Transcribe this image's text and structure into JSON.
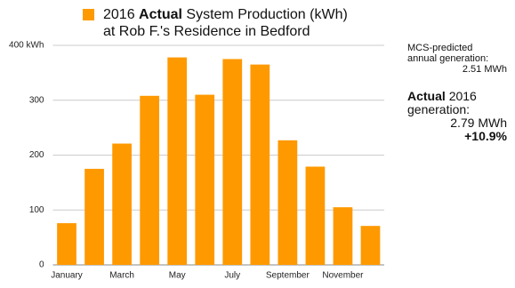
{
  "chart_data": {
    "type": "bar",
    "title": {
      "line1": [
        "2016",
        "Actual",
        "System Production (kWh)"
      ],
      "line2": "at Rob F.'s Residence in Bedford"
    },
    "categories": [
      "January",
      null,
      "March",
      null,
      "May",
      null,
      "July",
      null,
      "September",
      null,
      "November",
      null
    ],
    "values": [
      76,
      175,
      221,
      308,
      378,
      310,
      375,
      365,
      227,
      179,
      105,
      71
    ],
    "color": "#ff9900",
    "ylim": [
      0,
      400
    ],
    "yticks": [
      0,
      100,
      200,
      300,
      {
        "value": 400,
        "label": "400 kWh"
      }
    ],
    "grid": true,
    "annotations": {
      "predicted": [
        "MCS-predicted",
        "annual generation:",
        "2.51 MWh"
      ],
      "actual": [
        "Actual",
        "2016",
        "generation:",
        "2.79 MWh",
        "+10.9%"
      ]
    }
  }
}
